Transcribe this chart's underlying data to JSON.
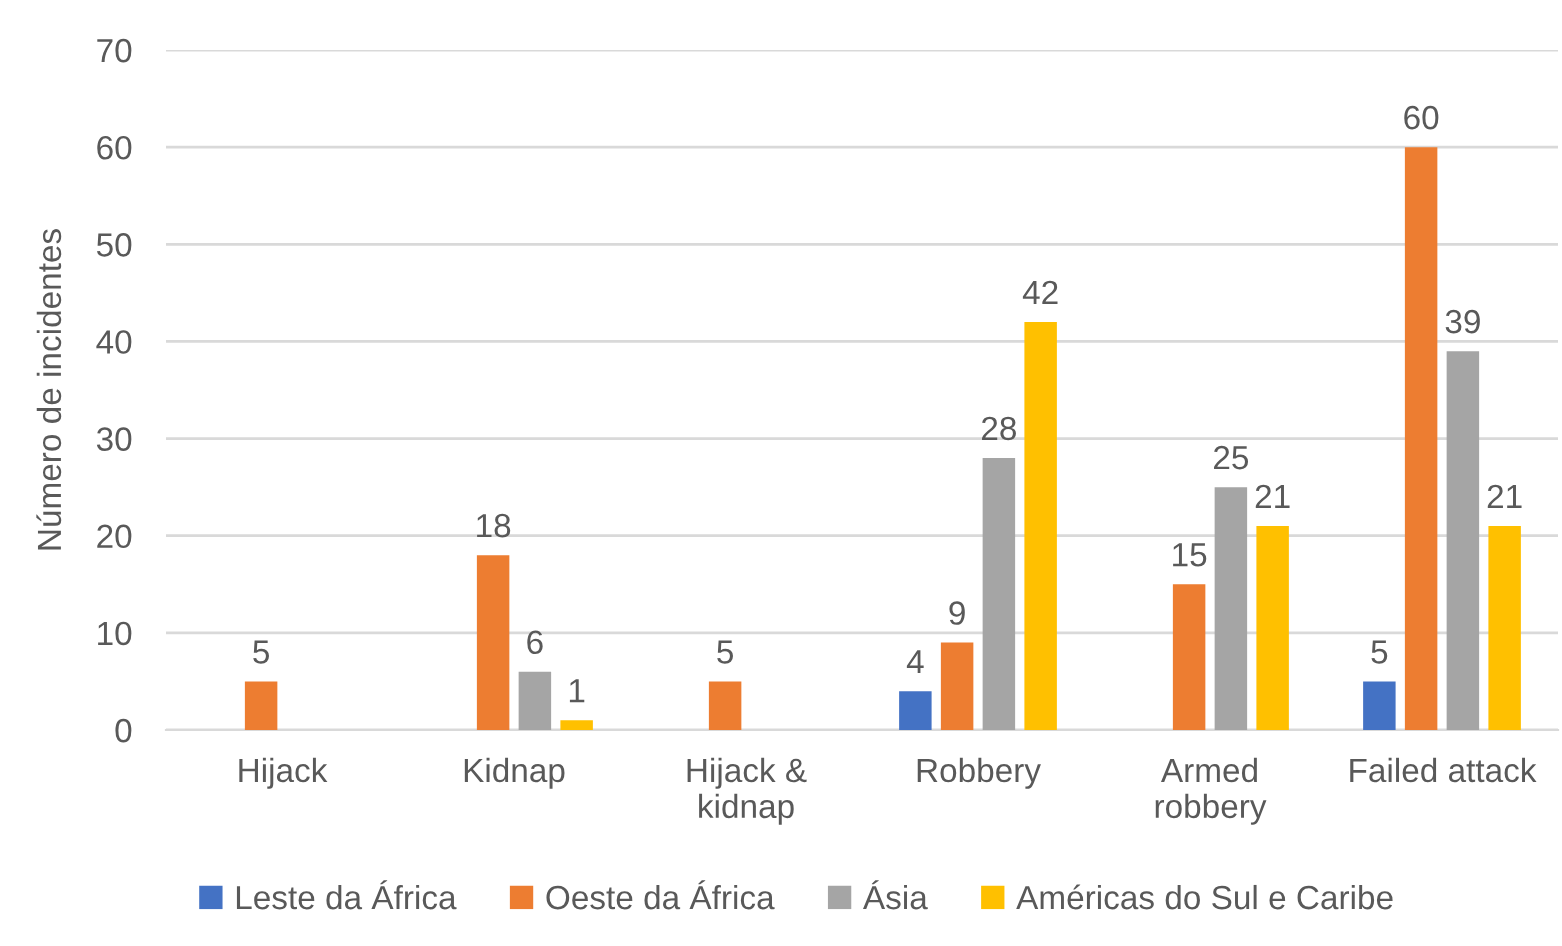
{
  "chart_data": {
    "type": "bar",
    "categories": [
      "Hijack",
      "Kidnap",
      "Hijack & kidnap",
      "Robbery",
      "Armed robbery",
      "Failed attack"
    ],
    "series": [
      {
        "name": "Leste da África",
        "color": "#4472c4",
        "values": [
          null,
          null,
          null,
          4,
          null,
          5
        ]
      },
      {
        "name": "Oeste da África",
        "color": "#ed7d31",
        "values": [
          5,
          18,
          5,
          9,
          15,
          60
        ]
      },
      {
        "name": "Ásia",
        "color": "#a5a5a5",
        "values": [
          null,
          6,
          null,
          28,
          25,
          39
        ]
      },
      {
        "name": "Américas do Sul e Caribe",
        "color": "#ffc000",
        "values": [
          null,
          1,
          null,
          42,
          21,
          21
        ]
      }
    ],
    "ylabel": "Número de incidentes",
    "ylim": [
      0,
      70
    ],
    "yticks": [
      0,
      10,
      20,
      30,
      40,
      50,
      60,
      70
    ],
    "grid": "y",
    "legend": "bottom",
    "data_labels": true
  }
}
